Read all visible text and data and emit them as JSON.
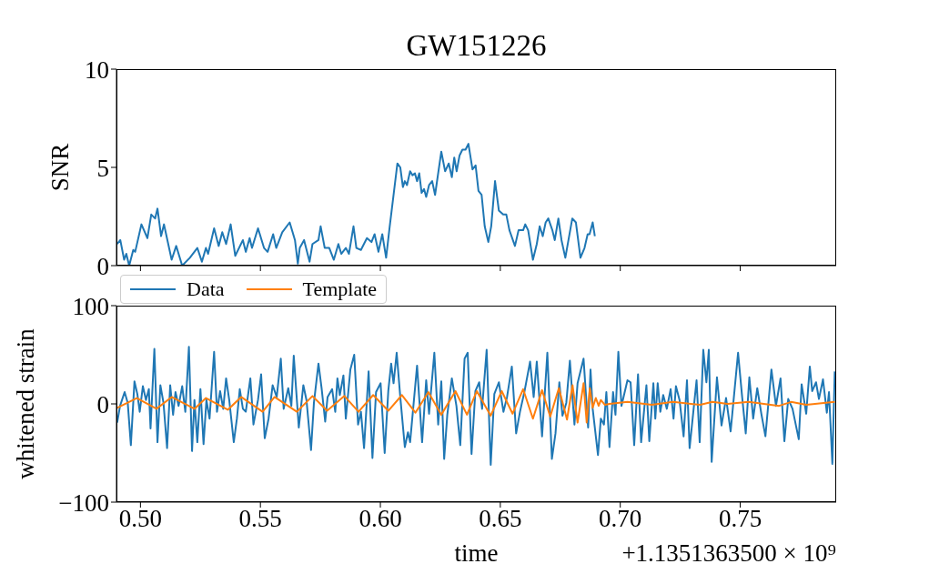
{
  "chart_data": [
    {
      "type": "line",
      "title": "GW151226",
      "ylabel": "SNR",
      "color": "#1f77b4",
      "x": [
        0.4903,
        0.4916,
        0.4932,
        0.4941,
        0.4953,
        0.497,
        0.4978,
        0.5004,
        0.5029,
        0.5045,
        0.5061,
        0.5071,
        0.5086,
        0.5098,
        0.513,
        0.5149,
        0.5174,
        0.5206,
        0.5237,
        0.5256,
        0.5273,
        0.5282,
        0.5307,
        0.5326,
        0.5341,
        0.5357,
        0.5376,
        0.5395,
        0.5427,
        0.5439,
        0.5455,
        0.5465,
        0.549,
        0.5515,
        0.553,
        0.5553,
        0.5566,
        0.5591,
        0.5622,
        0.5644,
        0.5656,
        0.5664,
        0.5682,
        0.5705,
        0.5717,
        0.5742,
        0.5751,
        0.5768,
        0.5787,
        0.5806,
        0.5825,
        0.5837,
        0.5856,
        0.5869,
        0.5888,
        0.59,
        0.5919,
        0.5944,
        0.5963,
        0.5976,
        0.5992,
        0.6008,
        0.6024,
        0.6039,
        0.6056,
        0.6071,
        0.6083,
        0.6094,
        0.6102,
        0.6111,
        0.6124,
        0.6134,
        0.6144,
        0.6153,
        0.6162,
        0.6172,
        0.6182,
        0.6191,
        0.6203,
        0.6216,
        0.6228,
        0.6254,
        0.627,
        0.6285,
        0.6298,
        0.6308,
        0.6318,
        0.633,
        0.6342,
        0.6355,
        0.6367,
        0.6384,
        0.6397,
        0.6409,
        0.6422,
        0.6435,
        0.645,
        0.6462,
        0.6478,
        0.6494,
        0.6512,
        0.6525,
        0.6538,
        0.6561,
        0.6576,
        0.6595,
        0.6604,
        0.6616,
        0.6636,
        0.6652,
        0.6664,
        0.6677,
        0.6689,
        0.67,
        0.6717,
        0.6727,
        0.6742,
        0.6755,
        0.6771,
        0.6784,
        0.68,
        0.6815,
        0.6834,
        0.6851,
        0.6864,
        0.6872,
        0.6885,
        0.6894
      ],
      "values": [
        1.1,
        1.3,
        0.3,
        0.6,
        0.0,
        0.8,
        0.7,
        2.1,
        1.4,
        2.6,
        2.4,
        2.9,
        1.5,
        2.1,
        0.3,
        1.0,
        0.0,
        0.4,
        0.9,
        0.2,
        0.9,
        0.6,
        1.9,
        1.0,
        1.7,
        1.1,
        2.1,
        0.5,
        1.3,
        0.7,
        1.4,
        0.9,
        1.9,
        0.9,
        0.7,
        1.6,
        0.9,
        1.7,
        2.2,
        1.3,
        0.1,
        0.9,
        1.3,
        0.2,
        1.1,
        1.3,
        2.0,
        0.9,
        0.9,
        0.3,
        1.1,
        0.6,
        0.9,
        0.6,
        2.0,
        0.9,
        0.8,
        1.4,
        1.2,
        1.6,
        0.7,
        1.6,
        0.4,
        2.0,
        3.7,
        5.2,
        5.0,
        4.0,
        4.3,
        4.1,
        4.8,
        4.6,
        4.7,
        4.3,
        4.7,
        3.7,
        3.9,
        3.5,
        4.1,
        4.3,
        3.6,
        5.8,
        4.8,
        5.2,
        4.5,
        5.5,
        4.8,
        5.6,
        5.9,
        5.9,
        6.2,
        4.9,
        5.1,
        3.8,
        3.6,
        2.0,
        1.2,
        2.0,
        4.3,
        2.8,
        2.6,
        2.6,
        1.8,
        1.0,
        1.8,
        1.8,
        2.1,
        1.8,
        0.3,
        1.1,
        2.0,
        1.5,
        2.2,
        2.4,
        1.8,
        1.3,
        2.4,
        1.3,
        0.4,
        1.3,
        2.4,
        2.2,
        0.4,
        0.9,
        1.6,
        1.6,
        2.2,
        1.5
      ],
      "xlim": [
        0.49,
        0.79
      ],
      "xticks": [
        0.5,
        0.55,
        0.6,
        0.65,
        0.7,
        0.75
      ],
      "ylim": [
        0,
        10
      ],
      "yticks": [
        0,
        5,
        10
      ],
      "tick_labels": "y"
    },
    {
      "type": "line",
      "ylabel": "whitened strain",
      "xlabel": "time",
      "legend": "top left",
      "annotations": [
        "+1.1351363500 × 10⁹"
      ],
      "series": [
        {
          "name": "Data",
          "color": "#1f77b4",
          "x": [
            0.4903,
            0.4915,
            0.4934,
            0.4947,
            0.496,
            0.4975,
            0.4987,
            0.4997,
            0.501,
            0.5023,
            0.5035,
            0.5042,
            0.5058,
            0.5071,
            0.5083,
            0.5096,
            0.5111,
            0.5124,
            0.5136,
            0.5146,
            0.5159,
            0.5174,
            0.5187,
            0.5202,
            0.5215,
            0.5225,
            0.5237,
            0.525,
            0.5263,
            0.5275,
            0.5288,
            0.5307,
            0.5319,
            0.5332,
            0.5345,
            0.5357,
            0.537,
            0.5389,
            0.5402,
            0.5414,
            0.5427,
            0.5439,
            0.5458,
            0.5471,
            0.549,
            0.5503,
            0.5518,
            0.5534,
            0.5551,
            0.5568,
            0.5585,
            0.5597,
            0.5616,
            0.5629,
            0.5639,
            0.566,
            0.5679,
            0.5692,
            0.5711,
            0.5723,
            0.5742,
            0.5755,
            0.577,
            0.578,
            0.5799,
            0.5812,
            0.5821,
            0.5831,
            0.5846,
            0.5856,
            0.5875,
            0.5891,
            0.5907,
            0.5919,
            0.5932,
            0.5951,
            0.5967,
            0.5982,
            0.6001,
            0.6018,
            0.6033,
            0.6045,
            0.6055,
            0.6068,
            0.6083,
            0.6102,
            0.6115,
            0.6124,
            0.6153,
            0.6174,
            0.6191,
            0.6203,
            0.6225,
            0.6241,
            0.6254,
            0.6266,
            0.6279,
            0.6298,
            0.6317,
            0.6333,
            0.6351,
            0.6364,
            0.638,
            0.6396,
            0.6412,
            0.6424,
            0.6443,
            0.646,
            0.6475,
            0.6494,
            0.6513,
            0.6528,
            0.6548,
            0.6566,
            0.6582,
            0.6601,
            0.6624,
            0.6639,
            0.6652,
            0.6674,
            0.6696,
            0.6715,
            0.673,
            0.6746,
            0.6759,
            0.6775,
            0.679,
            0.6809,
            0.6822,
            0.6847,
            0.6866,
            0.6876,
            0.6885,
            0.6907,
            0.6919,
            0.6932,
            0.6942,
            0.6955,
            0.697,
            0.698,
            0.6992,
            0.7005,
            0.703,
            0.7043,
            0.7058,
            0.7074,
            0.7087,
            0.7109,
            0.7121,
            0.7138,
            0.7146,
            0.7156,
            0.7167,
            0.7179,
            0.7194,
            0.721,
            0.7222,
            0.7232,
            0.7247,
            0.7264,
            0.7278,
            0.7289,
            0.7318,
            0.7331,
            0.7346,
            0.7359,
            0.7369,
            0.7381,
            0.7403,
            0.7422,
            0.7441,
            0.746,
            0.7491,
            0.7508,
            0.7523,
            0.7538,
            0.7554,
            0.7571,
            0.7588,
            0.7605,
            0.763,
            0.7649,
            0.7668,
            0.7684,
            0.77,
            0.7718,
            0.7744,
            0.7756,
            0.7775,
            0.779,
            0.78,
            0.7816,
            0.7828,
            0.7845,
            0.7861,
            0.787,
            0.7884,
            0.7894
          ],
          "values": [
            -19,
            -2,
            12,
            1,
            -42,
            23,
            10,
            -8,
            18,
            4,
            15,
            -25,
            56,
            -39,
            19,
            1,
            -45,
            19,
            -11,
            12,
            -2,
            18,
            -8,
            58,
            -48,
            4,
            -39,
            15,
            -41,
            4,
            -15,
            53,
            -8,
            13,
            -5,
            26,
            4,
            -39,
            -15,
            15,
            -5,
            -8,
            26,
            -21,
            4,
            30,
            -35,
            -15,
            19,
            7,
            46,
            -5,
            16,
            -2,
            49,
            -24,
            19,
            4,
            -47,
            1,
            41,
            16,
            -18,
            7,
            15,
            -8,
            26,
            9,
            29,
            -15,
            35,
            50,
            -21,
            -8,
            -45,
            33,
            -55,
            12,
            21,
            -50,
            13,
            41,
            21,
            52,
            7,
            -44,
            -29,
            -39,
            39,
            -39,
            24,
            -10,
            52,
            -21,
            23,
            -56,
            -11,
            26,
            -2,
            -42,
            46,
            52,
            -51,
            13,
            22,
            -5,
            55,
            -62,
            10,
            22,
            -8,
            7,
            38,
            -30,
            -8,
            13,
            43,
            7,
            43,
            -33,
            52,
            -56,
            -30,
            22,
            -12,
            1,
            44,
            -21,
            21,
            46,
            -24,
            35,
            -5,
            -52,
            -15,
            -21,
            12,
            -44,
            12,
            -11,
            53,
            -2,
            24,
            22,
            -42,
            30,
            -39,
            19,
            -38,
            21,
            -15,
            21,
            -8,
            9,
            -5,
            15,
            -15,
            18,
            4,
            -33,
            24,
            -45,
            24,
            -39,
            55,
            22,
            55,
            -59,
            27,
            -22,
            6,
            -28,
            52,
            7,
            -30,
            27,
            -15,
            16,
            -10,
            -33,
            35,
            -2,
            26,
            -38,
            5,
            -5,
            -36,
            20,
            -10,
            38,
            13,
            22,
            5,
            25,
            -9,
            12,
            -61,
            33
          ]
        },
        {
          "name": "Template",
          "color": "#ff7f0e",
          "x": [
            0.4903,
            0.4985,
            0.5067,
            0.513,
            0.5225,
            0.5273,
            0.5364,
            0.542,
            0.5509,
            0.5559,
            0.5652,
            0.5717,
            0.5778,
            0.585,
            0.5909,
            0.597,
            0.6033,
            0.609,
            0.6146,
            0.62,
            0.6254,
            0.6313,
            0.6361,
            0.6402,
            0.646,
            0.6506,
            0.6551,
            0.6595,
            0.6636,
            0.6674,
            0.6708,
            0.6744,
            0.6778,
            0.6801,
            0.6822,
            0.6847,
            0.686,
            0.6873,
            0.6885,
            0.6898,
            0.691,
            0.6919,
            0.6936,
            0.6955,
            0.703,
            0.7131,
            0.722,
            0.7333,
            0.7384,
            0.7447,
            0.7535,
            0.7662,
            0.7712,
            0.7775,
            0.7894
          ],
          "values": [
            -4,
            6,
            -5,
            7,
            -5,
            6,
            -6,
            7,
            -8,
            7,
            -8,
            8,
            -7,
            8,
            -8,
            9,
            -7,
            9,
            -9,
            12,
            -11,
            13,
            -11,
            13,
            -12,
            13,
            -10,
            15,
            -15,
            14,
            -13,
            16,
            -16,
            19,
            -19,
            21,
            -19,
            16,
            -4,
            6,
            -2,
            4,
            -1,
            0,
            2,
            -1,
            2,
            -1,
            2,
            0,
            2,
            -2,
            2,
            -1,
            2
          ]
        }
      ],
      "xlim": [
        0.49,
        0.79
      ],
      "xticks": [
        {
          "value": 0.5,
          "label": "0.50"
        },
        {
          "value": 0.55,
          "label": "0.55"
        },
        {
          "value": 0.6,
          "label": "0.60"
        },
        {
          "value": 0.65,
          "label": "0.65"
        },
        {
          "value": 0.7,
          "label": "0.70"
        },
        {
          "value": 0.75,
          "label": "0.75"
        }
      ],
      "ylim": [
        -100,
        100
      ],
      "yticks": [
        {
          "value": -100,
          "label": "−100"
        },
        0,
        100
      ]
    }
  ]
}
